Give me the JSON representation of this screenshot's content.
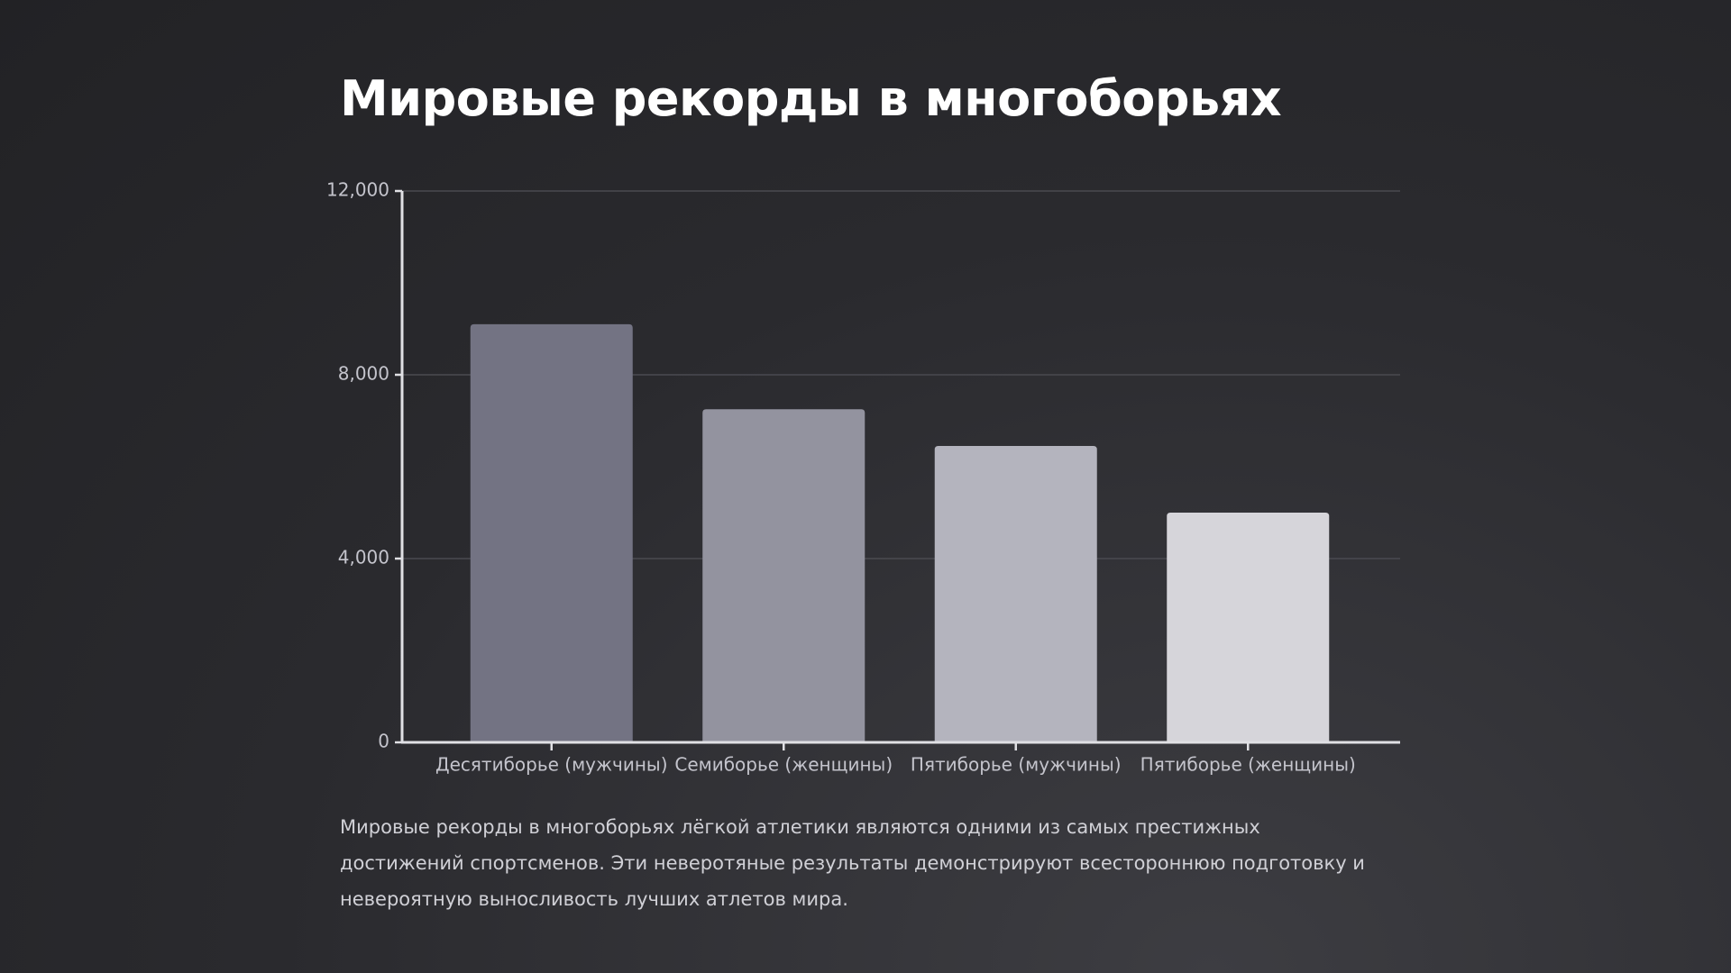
{
  "chart_data": {
    "type": "bar",
    "title": "Мировые рекорды в многоборьях",
    "categories": [
      "Десятиборье (мужчины)",
      "Семиборье (женщины)",
      "Пятиборье (мужчины)",
      "Пятиборье (женщины)"
    ],
    "values": [
      9100,
      7250,
      6450,
      5000
    ],
    "colors": [
      "#737383",
      "#93939f",
      "#b4b4be",
      "#d6d5da"
    ],
    "ylim": [
      0,
      12000
    ],
    "yticks": [
      0,
      {
        "value": 4000,
        "label": "4,000"
      },
      {
        "value": 8000,
        "label": "8,000"
      },
      {
        "value": 12000,
        "label": "12,000"
      }
    ],
    "grid": true,
    "description": "Мировые рекорды в многоборьях лёгкой атлетики являются одними из самых престижных достижений спортсменов. Эти неверотяные результаты демонстрируют всестороннюю подготовку и невероятную выносливость лучших атлетов мира."
  }
}
